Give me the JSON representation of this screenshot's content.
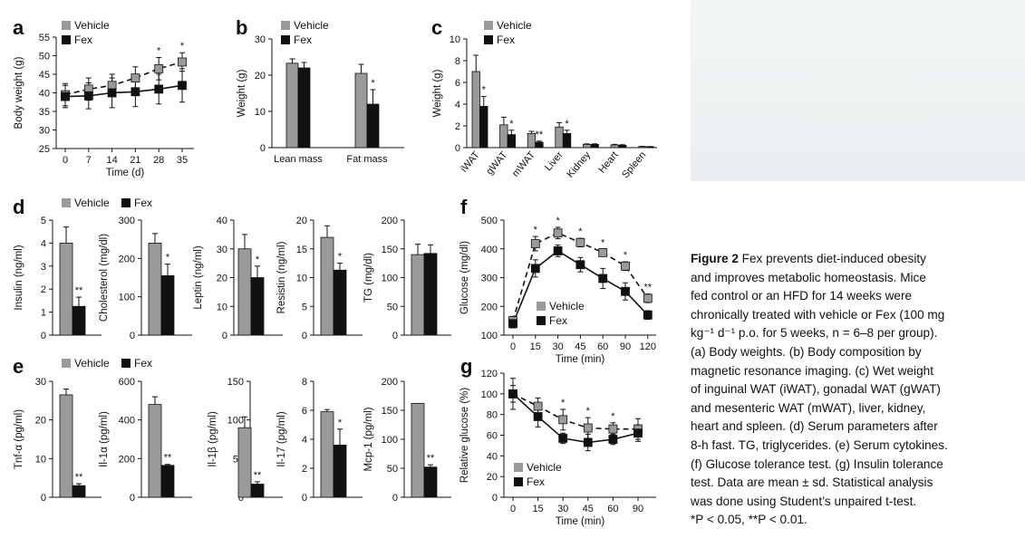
{
  "colors": {
    "vehicle": "#9a9a9a",
    "fex": "#111111"
  },
  "legend": {
    "vehicle": "Vehicle",
    "fex": "Fex"
  },
  "caption": {
    "title": "Figure 2",
    "lines": [
      "Fex prevents diet-induced obesity",
      "and improves metabolic homeostasis. Mice",
      "fed control or an HFD for 14 weeks were",
      "chronically treated with vehicle or Fex (100 mg",
      "kg⁻¹ d⁻¹ p.o. for 5 weeks, n = 6–8 per group).",
      "(a) Body weights. (b) Body composition by",
      "magnetic resonance imaging. (c) Wet weight",
      "of inguinal WAT (iWAT), gonadal WAT (gWAT)",
      "and mesenteric WAT (mWAT), liver, kidney,",
      "heart and spleen. (d) Serum parameters after",
      "8-h fast. TG, triglycerides. (e) Serum cytokines.",
      "(f) Glucose tolerance test. (g) Insulin tolerance",
      "test. Data are mean ± sd. Statistical analysis",
      "was done using Student’s unpaired t-test.",
      "*P < 0.05, **P < 0.01."
    ]
  },
  "chart_data": [
    {
      "panel": "a",
      "type": "line",
      "xlabel": "Time (d)",
      "ylabel": "Body weight (g)",
      "x": [
        0,
        7,
        14,
        21,
        28,
        35
      ],
      "ylim": [
        25,
        55
      ],
      "yticks": [
        25,
        30,
        35,
        40,
        45,
        50,
        55
      ],
      "series": [
        {
          "name": "Vehicle",
          "values": [
            39.5,
            41,
            42,
            44,
            46.5,
            48.3
          ],
          "err": [
            3,
            3,
            3,
            3,
            3,
            2.5
          ]
        },
        {
          "name": "Fex",
          "values": [
            39,
            39.2,
            40,
            40.3,
            41,
            42
          ],
          "err": [
            3,
            3.5,
            4,
            4,
            4,
            4.5
          ]
        }
      ],
      "stars": [
        "",
        "",
        "",
        "",
        "*",
        "*"
      ]
    },
    {
      "panel": "b",
      "type": "bar",
      "xlabel": "",
      "ylabel": "Weight (g)",
      "categories": [
        "Lean mass",
        "Fat mass"
      ],
      "ylim": [
        0,
        30
      ],
      "yticks": [
        0,
        10,
        20,
        30
      ],
      "series": [
        {
          "name": "Vehicle",
          "values": [
            23.3,
            20.5
          ],
          "err": [
            1.2,
            2.5
          ]
        },
        {
          "name": "Fex",
          "values": [
            22,
            12
          ],
          "err": [
            1.5,
            4
          ]
        }
      ],
      "stars": [
        "",
        "*"
      ]
    },
    {
      "panel": "c",
      "type": "bar",
      "xlabel": "",
      "ylabel": "Weight (g)",
      "categories": [
        "iWAT",
        "gWAT",
        "mWAT",
        "Liver",
        "Kidney",
        "Heart",
        "Spleen"
      ],
      "ylim": [
        0,
        10
      ],
      "yticks": [
        0,
        2,
        4,
        6,
        8,
        10
      ],
      "series": [
        {
          "name": "Vehicle",
          "values": [
            7,
            2.1,
            1.3,
            1.9,
            0.3,
            0.25,
            0.1
          ],
          "err": [
            1.5,
            0.7,
            0.2,
            0.4,
            0.05,
            0.05,
            0.02
          ]
        },
        {
          "name": "Fex",
          "values": [
            3.8,
            1.2,
            0.5,
            1.3,
            0.3,
            0.22,
            0.08
          ],
          "err": [
            0.9,
            0.4,
            0.1,
            0.3,
            0.05,
            0.05,
            0.02
          ]
        }
      ],
      "stars": [
        "*",
        "*",
        "**",
        "*",
        "",
        "",
        ""
      ]
    },
    {
      "panel": "d1",
      "type": "bar",
      "ylabel": "Insulin (ng/ml)",
      "ylim": [
        0,
        5
      ],
      "yticks": [
        0,
        1,
        2,
        3,
        4,
        5
      ],
      "series": [
        {
          "name": "Vehicle",
          "values": [
            4
          ],
          "err": [
            0.7
          ]
        },
        {
          "name": "Fex",
          "values": [
            1.25
          ],
          "err": [
            0.4
          ]
        }
      ],
      "stars": [
        "**"
      ]
    },
    {
      "panel": "d2",
      "type": "bar",
      "ylabel": "Cholesterol (mg/dl)",
      "ylim": [
        0,
        300
      ],
      "yticks": [
        0,
        100,
        200,
        300
      ],
      "series": [
        {
          "name": "Vehicle",
          "values": [
            240
          ],
          "err": [
            25
          ]
        },
        {
          "name": "Fex",
          "values": [
            155
          ],
          "err": [
            30
          ]
        }
      ],
      "stars": [
        "*"
      ]
    },
    {
      "panel": "d3",
      "type": "bar",
      "ylabel": "Leptin (ng/ml)",
      "ylim": [
        0,
        40
      ],
      "yticks": [
        0,
        10,
        20,
        30,
        40
      ],
      "series": [
        {
          "name": "Vehicle",
          "values": [
            30
          ],
          "err": [
            5
          ]
        },
        {
          "name": "Fex",
          "values": [
            20
          ],
          "err": [
            4
          ]
        }
      ],
      "stars": [
        "*"
      ]
    },
    {
      "panel": "d4",
      "type": "bar",
      "ylabel": "Resistin (ng/ml)",
      "ylim": [
        0,
        20
      ],
      "yticks": [
        0,
        5,
        10,
        15,
        20
      ],
      "series": [
        {
          "name": "Vehicle",
          "values": [
            17
          ],
          "err": [
            2
          ]
        },
        {
          "name": "Fex",
          "values": [
            11.3
          ],
          "err": [
            1.2
          ]
        }
      ],
      "stars": [
        "*"
      ]
    },
    {
      "panel": "d5",
      "type": "bar",
      "ylabel": "TG (mg/dl)",
      "ylim": [
        0,
        200
      ],
      "yticks": [
        0,
        50,
        100,
        150,
        200
      ],
      "series": [
        {
          "name": "Vehicle",
          "values": [
            140
          ],
          "err": [
            18
          ]
        },
        {
          "name": "Fex",
          "values": [
            142
          ],
          "err": [
            15
          ]
        }
      ],
      "stars": [
        ""
      ]
    },
    {
      "panel": "e1",
      "type": "bar",
      "ylabel": "Tnf-α (pg/ml)",
      "ylim": [
        0,
        30
      ],
      "yticks": [
        0,
        10,
        20,
        30
      ],
      "series": [
        {
          "name": "Vehicle",
          "values": [
            26.5
          ],
          "err": [
            1.5
          ]
        },
        {
          "name": "Fex",
          "values": [
            3
          ],
          "err": [
            0.5
          ]
        }
      ],
      "stars": [
        "**"
      ]
    },
    {
      "panel": "e2",
      "type": "bar",
      "ylabel": "Il-1α (pg/ml)",
      "ylim": [
        0,
        600
      ],
      "yticks": [
        0,
        200,
        400,
        600
      ],
      "series": [
        {
          "name": "Vehicle",
          "values": [
            480
          ],
          "err": [
            40
          ]
        },
        {
          "name": "Fex",
          "values": [
            165
          ],
          "err": [
            5
          ]
        }
      ],
      "stars": [
        "**"
      ]
    },
    {
      "panel": "e3",
      "type": "bar",
      "ylabel": "Il-1β (pg/ml)",
      "ylim": [
        0,
        150
      ],
      "yticks": [
        0,
        50,
        100,
        150
      ],
      "series": [
        {
          "name": "Vehicle",
          "values": [
            90
          ],
          "err": [
            14
          ]
        },
        {
          "name": "Fex",
          "values": [
            17
          ],
          "err": [
            3
          ]
        }
      ],
      "stars": [
        "**"
      ]
    },
    {
      "panel": "e4",
      "type": "bar",
      "ylabel": "Il-17 (pg/ml)",
      "ylim": [
        0,
        8
      ],
      "yticks": [
        0,
        2,
        4,
        6,
        8
      ],
      "series": [
        {
          "name": "Vehicle",
          "values": [
            5.9
          ],
          "err": [
            0.15
          ]
        },
        {
          "name": "Fex",
          "values": [
            3.6
          ],
          "err": [
            1.1
          ]
        }
      ],
      "stars": [
        "*"
      ]
    },
    {
      "panel": "e5",
      "type": "bar",
      "ylabel": "Mcp-1 (pg/ml)",
      "ylim": [
        0,
        200
      ],
      "yticks": [
        0,
        50,
        100,
        150,
        200
      ],
      "series": [
        {
          "name": "Vehicle",
          "values": [
            162
          ],
          "err": [
            0
          ]
        },
        {
          "name": "Fex",
          "values": [
            52
          ],
          "err": [
            4
          ]
        }
      ],
      "stars": [
        "**"
      ]
    },
    {
      "panel": "f",
      "type": "line",
      "xlabel": "Time (min)",
      "ylabel": "Glucose (mg/dl)",
      "x": [
        0,
        15,
        30,
        45,
        60,
        90,
        120
      ],
      "ylim": [
        100,
        500
      ],
      "yticks": [
        100,
        200,
        300,
        400,
        500
      ],
      "series": [
        {
          "name": "Vehicle",
          "values": [
            150,
            418,
            455,
            422,
            387,
            340,
            228
          ],
          "err": [
            15,
            25,
            20,
            15,
            10,
            15,
            15
          ]
        },
        {
          "name": "Fex",
          "values": [
            140,
            332,
            393,
            345,
            297,
            252,
            170
          ],
          "err": [
            15,
            30,
            20,
            25,
            35,
            30,
            15
          ]
        }
      ],
      "stars": [
        "",
        "*",
        "*",
        "*",
        "*",
        "*",
        "**"
      ]
    },
    {
      "panel": "g",
      "type": "line",
      "xlabel": "Time (min)",
      "ylabel": "Relative glucose (%)",
      "x": [
        0,
        15,
        30,
        45,
        60,
        90
      ],
      "ylim": [
        0,
        120
      ],
      "yticks": [
        0,
        20,
        40,
        60,
        80,
        100,
        120
      ],
      "series": [
        {
          "name": "Vehicle",
          "values": [
            100,
            88,
            75,
            67,
            66,
            66
          ],
          "err": [
            8,
            8,
            10,
            10,
            6,
            10
          ]
        },
        {
          "name": "Fex",
          "values": [
            100,
            78,
            57,
            53,
            56,
            62
          ],
          "err": [
            15,
            10,
            5,
            8,
            5,
            8
          ]
        }
      ],
      "stars": [
        "",
        "",
        "*",
        "*",
        "*",
        ""
      ]
    }
  ]
}
